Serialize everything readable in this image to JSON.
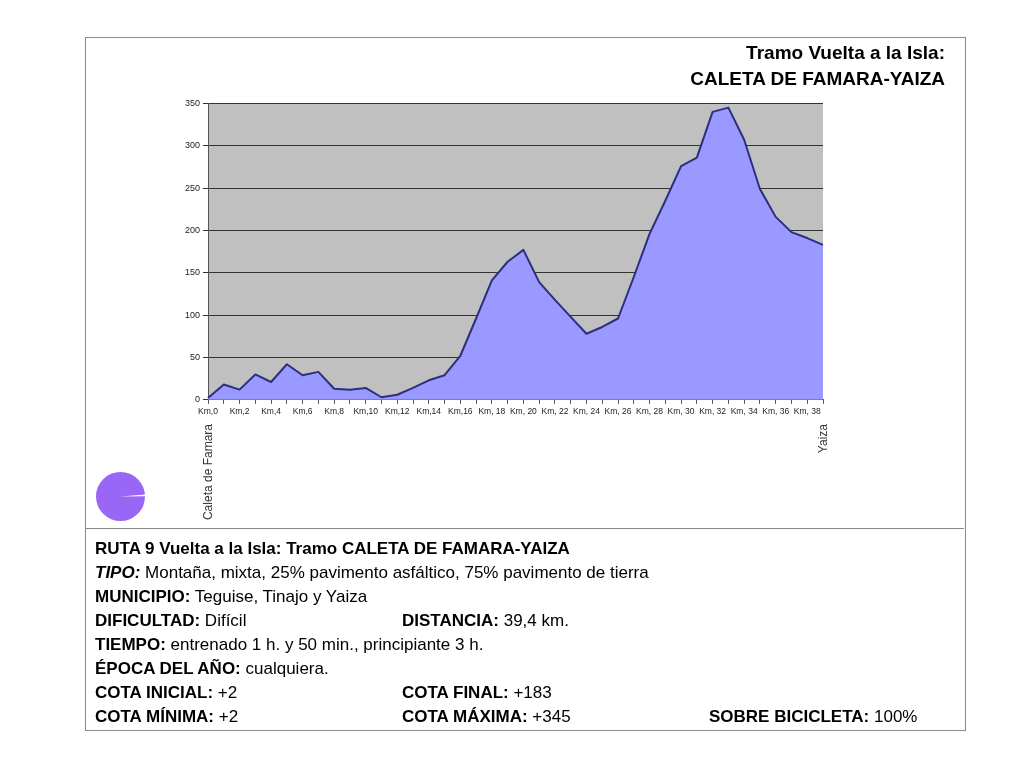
{
  "chart_data": {
    "type": "area",
    "title": "Tramo Vuelta a la Isla:",
    "subtitle": "CALETA DE FAMARA-YAIZA",
    "categories": [
      "Km,0",
      null,
      "Km,2",
      null,
      "Km,4",
      null,
      "Km,6",
      null,
      "Km,8",
      null,
      "Km,10",
      null,
      "Km,12",
      null,
      "Km,14",
      null,
      "Km,16",
      null,
      "Km, 18",
      null,
      "Km, 20",
      null,
      "Km, 22",
      null,
      "Km, 24",
      null,
      "Km, 26",
      null,
      "Km, 28",
      null,
      "Km, 30",
      null,
      "Km, 32",
      null,
      "Km, 34",
      null,
      "Km, 36",
      null,
      "Km, 38",
      null
    ],
    "values": [
      2,
      18,
      12,
      30,
      21,
      42,
      29,
      33,
      13,
      12,
      14,
      3,
      6,
      14,
      23,
      29,
      52,
      96,
      141,
      163,
      177,
      139,
      118,
      98,
      78,
      86,
      96,
      145,
      196,
      235,
      276,
      286,
      340,
      345,
      307,
      249,
      216,
      198,
      191,
      183
    ],
    "color": "#9999ff",
    "ylim": [
      0,
      350
    ],
    "yticks": [
      0,
      50,
      100,
      150,
      200,
      250,
      300,
      350
    ],
    "grid": "y",
    "annotations": [
      "Caleta de Famara",
      "Yaiza",
      "RUTA 9 Vuelta a la Isla: Tramo CALETA DE FAMARA-YAIZA",
      "TIPO: Montaña, mixta, 25% pavimento asfáltico, 75% pavimento de tierra",
      "MUNICIPIO: Teguise, Tinajo y Yaiza",
      "DIFICULTAD: Difícil",
      "DISTANCIA: 39,4 km.",
      "TIEMPO: entrenado 1 h. y 50 min., principiante 3 h.",
      "ÉPOCA DEL AÑO: cualquiera.",
      "COTA INICIAL: +2",
      "COTA FINAL: +183",
      "COTA MÍNIMA: +2",
      "COTA MÁXIMA: +345",
      "SOBRE BICICLETA: 100%"
    ]
  }
}
